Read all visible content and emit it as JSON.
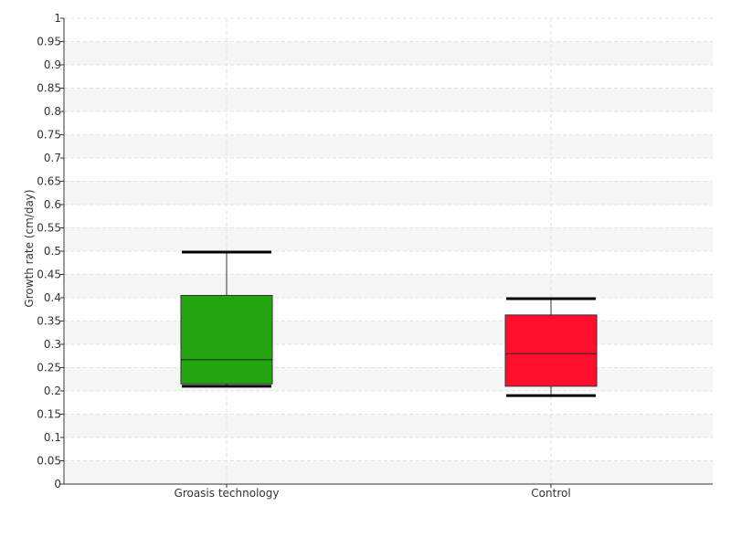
{
  "chart_data": {
    "type": "boxplot",
    "title": "",
    "xlabel": "",
    "ylabel": "Growth rate (cm/day)",
    "ylim": [
      0,
      1
    ],
    "y_ticks": [
      "0",
      "0.05",
      "0.1",
      "0.15",
      "0.2",
      "0.25",
      "0.3",
      "0.35",
      "0.4",
      "0.45",
      "0.5",
      "0.55",
      "0.6",
      "0.65",
      "0.7",
      "0.75",
      "0.8",
      "0.85",
      "0.9",
      "0.95",
      "1"
    ],
    "grid": true,
    "categories": [
      "Groasis technology",
      "Control"
    ],
    "boxes": [
      {
        "category": "Groasis technology",
        "min": 0.21,
        "q1": 0.215,
        "median": 0.267,
        "q3": 0.405,
        "max": 0.498,
        "color": "#22a50f"
      },
      {
        "category": "Control",
        "min": 0.19,
        "q1": 0.21,
        "median": 0.28,
        "q3": 0.363,
        "max": 0.398,
        "color": "#ff0f2b"
      }
    ]
  }
}
